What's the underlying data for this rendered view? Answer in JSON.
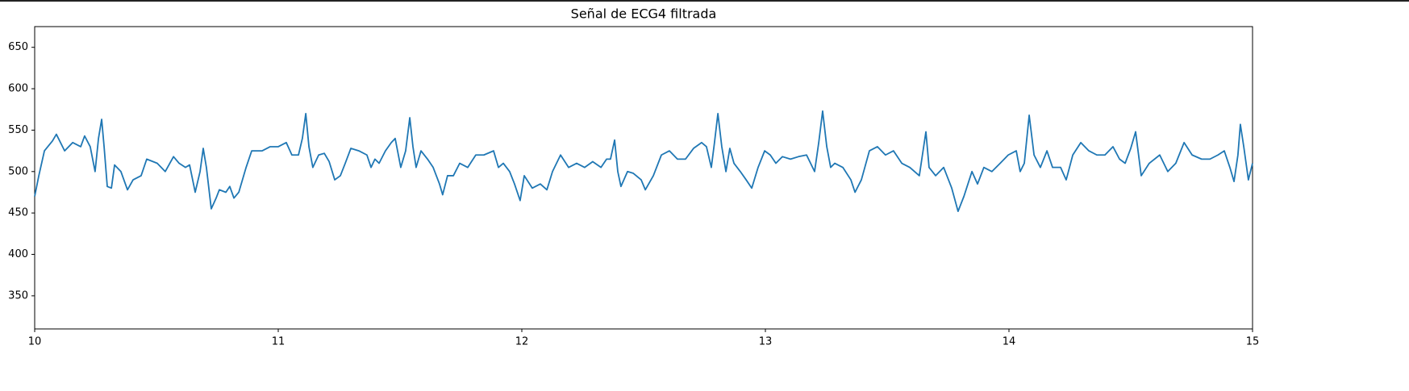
{
  "chart_data": {
    "type": "line",
    "title": "Señal de ECG4 filtrada",
    "color": "#1f77b4",
    "x": [
      10.0,
      10.017,
      10.04,
      10.073,
      10.089,
      10.123,
      10.156,
      10.189,
      10.205,
      10.228,
      10.248,
      10.262,
      10.275,
      10.285,
      10.298,
      10.315,
      10.328,
      10.354,
      10.381,
      10.404,
      10.437,
      10.46,
      10.503,
      10.536,
      10.57,
      10.593,
      10.619,
      10.636,
      10.659,
      10.679,
      10.692,
      10.705,
      10.725,
      10.745,
      10.758,
      10.785,
      10.801,
      10.818,
      10.838,
      10.868,
      10.891,
      10.934,
      10.967,
      11.0,
      11.033,
      11.056,
      11.083,
      11.099,
      11.113,
      11.126,
      11.142,
      11.166,
      11.189,
      11.209,
      11.232,
      11.255,
      11.275,
      11.298,
      11.331,
      11.364,
      11.381,
      11.397,
      11.414,
      11.44,
      11.464,
      11.48,
      11.503,
      11.523,
      11.54,
      11.553,
      11.566,
      11.586,
      11.613,
      11.636,
      11.662,
      11.675,
      11.695,
      11.719,
      11.745,
      11.778,
      11.811,
      11.844,
      11.884,
      11.904,
      11.924,
      11.95,
      11.97,
      11.993,
      12.01,
      12.043,
      12.076,
      12.103,
      12.126,
      12.159,
      12.192,
      12.225,
      12.258,
      12.291,
      12.325,
      12.348,
      12.364,
      12.381,
      12.394,
      12.407,
      12.434,
      12.457,
      12.49,
      12.507,
      12.54,
      12.573,
      12.606,
      12.639,
      12.672,
      12.705,
      12.738,
      12.758,
      12.778,
      12.791,
      12.805,
      12.821,
      12.838,
      12.854,
      12.871,
      12.897,
      12.921,
      12.944,
      12.97,
      12.997,
      13.02,
      13.043,
      13.07,
      13.103,
      13.136,
      13.169,
      13.202,
      13.219,
      13.235,
      13.252,
      13.268,
      13.285,
      13.318,
      13.351,
      13.368,
      13.394,
      13.427,
      13.46,
      13.493,
      13.526,
      13.56,
      13.593,
      13.632,
      13.659,
      13.672,
      13.699,
      13.732,
      13.765,
      13.791,
      13.815,
      13.848,
      13.871,
      13.897,
      13.93,
      13.964,
      13.997,
      14.03,
      14.046,
      14.063,
      14.083,
      14.103,
      14.129,
      14.156,
      14.179,
      14.212,
      14.235,
      14.262,
      14.295,
      14.328,
      14.361,
      14.394,
      14.427,
      14.454,
      14.477,
      14.5,
      14.52,
      14.543,
      14.576,
      14.619,
      14.652,
      14.685,
      14.719,
      14.752,
      14.791,
      14.825,
      14.858,
      14.884,
      14.907,
      14.924,
      14.94,
      14.95,
      14.964,
      14.983,
      15.0
    ],
    "values": [
      470,
      495,
      525,
      537,
      545,
      525,
      535,
      530,
      543,
      530,
      500,
      540,
      563,
      530,
      482,
      480,
      508,
      500,
      478,
      490,
      495,
      515,
      510,
      500,
      518,
      510,
      505,
      508,
      475,
      500,
      528,
      505,
      455,
      468,
      478,
      475,
      482,
      468,
      475,
      505,
      525,
      525,
      530,
      530,
      535,
      520,
      520,
      540,
      570,
      530,
      505,
      520,
      522,
      512,
      490,
      495,
      510,
      528,
      525,
      520,
      505,
      515,
      510,
      525,
      535,
      540,
      505,
      525,
      565,
      530,
      505,
      525,
      515,
      505,
      485,
      472,
      495,
      495,
      510,
      505,
      520,
      520,
      525,
      505,
      510,
      500,
      485,
      465,
      495,
      480,
      485,
      478,
      500,
      520,
      505,
      510,
      505,
      512,
      505,
      515,
      515,
      538,
      500,
      482,
      500,
      498,
      490,
      478,
      495,
      520,
      525,
      515,
      515,
      528,
      535,
      530,
      505,
      535,
      570,
      530,
      500,
      528,
      510,
      500,
      490,
      480,
      505,
      525,
      520,
      510,
      518,
      515,
      518,
      520,
      500,
      535,
      573,
      530,
      505,
      510,
      505,
      490,
      475,
      490,
      525,
      530,
      520,
      525,
      510,
      505,
      495,
      548,
      505,
      495,
      505,
      480,
      452,
      470,
      500,
      485,
      505,
      500,
      510,
      520,
      525,
      500,
      510,
      568,
      520,
      505,
      525,
      505,
      505,
      490,
      520,
      535,
      525,
      520,
      520,
      530,
      515,
      510,
      528,
      548,
      495,
      510,
      520,
      500,
      510,
      535,
      520,
      515,
      515,
      520,
      525,
      505,
      488,
      520,
      557,
      530,
      490,
      510
    ],
    "xlim": [
      10,
      15
    ],
    "xticks": [
      10,
      11,
      12,
      13,
      14,
      15
    ],
    "ylim": [
      310,
      675
    ],
    "yticks": [
      350,
      400,
      450,
      500,
      550,
      600,
      650
    ],
    "grid": false
  }
}
